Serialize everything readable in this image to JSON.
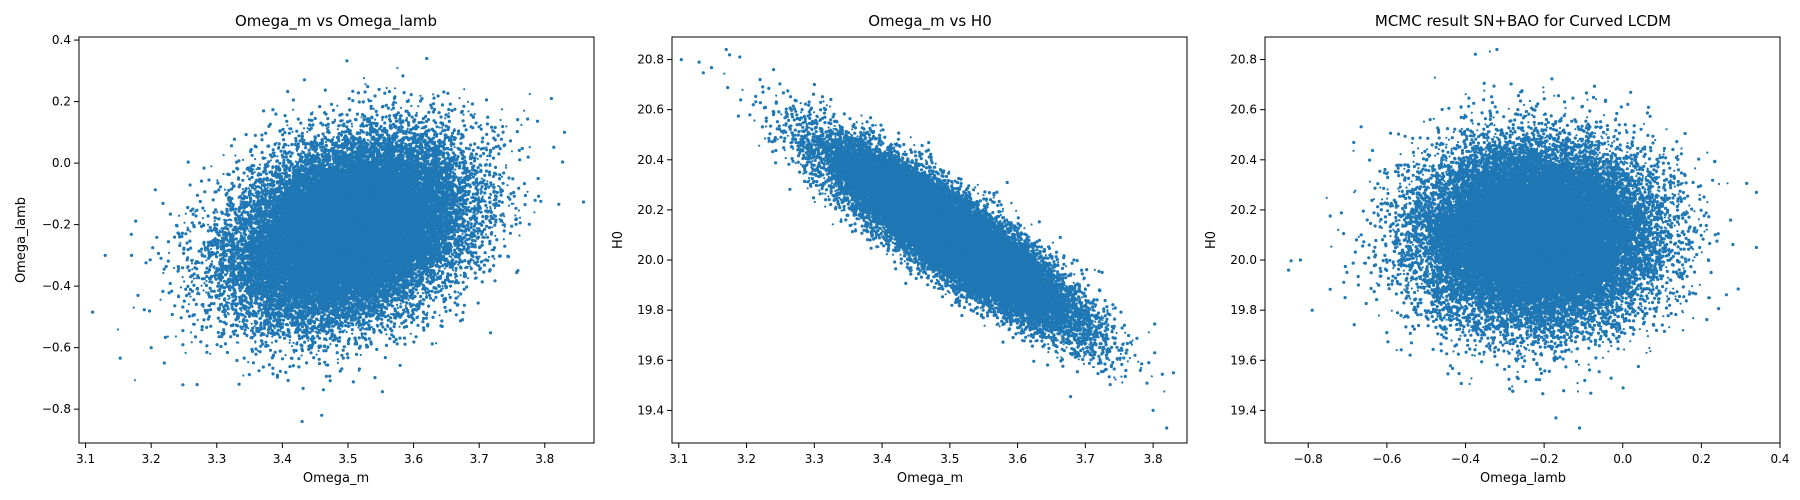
{
  "figure": {
    "background": "#ffffff"
  },
  "chart_data": [
    {
      "type": "scatter",
      "title": "Omega_m vs Omega_lamb",
      "xlabel": "Omega_m",
      "ylabel": "Omega_lamb",
      "xlim": [
        3.09,
        3.875
      ],
      "ylim": [
        -0.91,
        0.41
      ],
      "xticks": [
        3.1,
        3.2,
        3.3,
        3.4,
        3.5,
        3.6,
        3.7,
        3.8
      ],
      "yticks": [
        -0.8,
        -0.6,
        -0.4,
        -0.2,
        0.0,
        0.2,
        0.4
      ],
      "tick_decimals": {
        "x": 1,
        "y": 1
      },
      "color": "#1f77b4",
      "grid": false,
      "distribution": {
        "x_mean": 3.5,
        "x_sd": 0.085,
        "y_mean": -0.22,
        "y_sd": 0.14,
        "corr": 0.3,
        "n": 30000
      },
      "outliers": [
        [
          3.13,
          -0.3
        ],
        [
          3.17,
          -0.3
        ],
        [
          3.18,
          -0.43
        ],
        [
          3.2,
          -0.6
        ],
        [
          3.62,
          0.34
        ],
        [
          3.43,
          -0.84
        ],
        [
          3.83,
          0.1
        ],
        [
          3.81,
          0.21
        ],
        [
          3.46,
          -0.82
        ],
        [
          3.22,
          -0.65
        ],
        [
          3.79,
          -0.05
        ],
        [
          3.27,
          -0.72
        ]
      ]
    },
    {
      "type": "scatter",
      "title": "Omega_m vs H0",
      "xlabel": "Omega_m",
      "ylabel": "H0",
      "xlim": [
        3.09,
        3.85
      ],
      "ylim": [
        19.27,
        20.89
      ],
      "xticks": [
        3.1,
        3.2,
        3.3,
        3.4,
        3.5,
        3.6,
        3.7,
        3.8
      ],
      "yticks": [
        19.4,
        19.6,
        19.8,
        20.0,
        20.2,
        20.4,
        20.6,
        20.8
      ],
      "tick_decimals": {
        "x": 1,
        "y": 1
      },
      "color": "#1f77b4",
      "grid": false,
      "distribution": {
        "x_mean": 3.5,
        "x_sd": 0.085,
        "y_mean": 20.1,
        "y_sd": 0.17,
        "corr": -0.88,
        "n": 30000
      },
      "outliers": [
        [
          3.13,
          20.79
        ],
        [
          3.17,
          20.84
        ],
        [
          3.19,
          20.81
        ],
        [
          3.82,
          19.33
        ],
        [
          3.8,
          19.4
        ],
        [
          3.83,
          19.55
        ],
        [
          3.21,
          20.62
        ],
        [
          3.22,
          20.72
        ],
        [
          3.24,
          20.76
        ]
      ]
    },
    {
      "type": "scatter",
      "title": "MCMC result SN+BAO for Curved LCDM",
      "xlabel": "Omega_lamb",
      "ylabel": "H0",
      "xlim": [
        -0.91,
        0.4
      ],
      "ylim": [
        19.27,
        20.89
      ],
      "xticks": [
        -0.8,
        -0.6,
        -0.4,
        -0.2,
        0.0,
        0.2,
        0.4
      ],
      "yticks": [
        19.4,
        19.6,
        19.8,
        20.0,
        20.2,
        20.4,
        20.6,
        20.8
      ],
      "tick_decimals": {
        "x": 1,
        "y": 1
      },
      "color": "#1f77b4",
      "grid": false,
      "distribution": {
        "x_mean": -0.22,
        "x_sd": 0.14,
        "y_mean": 20.1,
        "y_sd": 0.17,
        "corr": 0.0,
        "n": 30000
      },
      "outliers": [
        [
          -0.85,
          19.96
        ],
        [
          -0.82,
          20.0
        ],
        [
          0.34,
          20.27
        ],
        [
          0.34,
          20.05
        ],
        [
          -0.32,
          20.84
        ],
        [
          -0.11,
          19.33
        ],
        [
          -0.17,
          19.37
        ],
        [
          -0.79,
          19.8
        ]
      ]
    }
  ]
}
